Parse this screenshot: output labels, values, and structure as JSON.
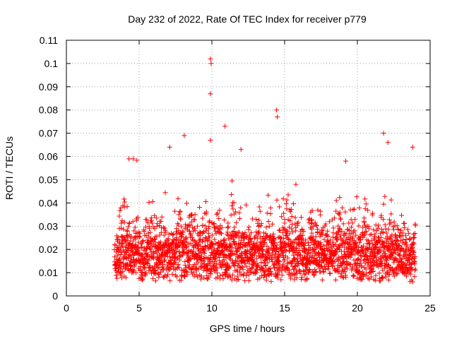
{
  "chart_data": {
    "type": "scatter",
    "title": "Day 232 of 2022, Rate Of TEC Index for receiver p779",
    "xlabel": "GPS time / hours",
    "ylabel": "ROTI / TECUs",
    "xlim": [
      0,
      25
    ],
    "ylim": [
      0,
      0.11
    ],
    "x_ticks": [
      0,
      5,
      10,
      15,
      20,
      25
    ],
    "y_ticks": [
      0,
      0.01,
      0.02,
      0.03,
      0.04,
      0.05,
      0.06,
      0.07,
      0.08,
      0.09,
      0.1,
      0.11
    ],
    "grid": true,
    "marker": "+",
    "series_color": "#ff0000",
    "data_coverage_hours": [
      3.3,
      24.0
    ],
    "notable_points": [
      {
        "x": 9.9,
        "y": 0.102
      },
      {
        "x": 9.95,
        "y": 0.1
      },
      {
        "x": 9.9,
        "y": 0.087
      },
      {
        "x": 14.45,
        "y": 0.08
      },
      {
        "x": 14.5,
        "y": 0.077
      },
      {
        "x": 10.9,
        "y": 0.073
      },
      {
        "x": 21.8,
        "y": 0.07
      },
      {
        "x": 8.1,
        "y": 0.069
      },
      {
        "x": 9.9,
        "y": 0.067
      },
      {
        "x": 22.1,
        "y": 0.066
      },
      {
        "x": 7.1,
        "y": 0.064
      },
      {
        "x": 23.8,
        "y": 0.064
      },
      {
        "x": 12.0,
        "y": 0.063
      },
      {
        "x": 4.3,
        "y": 0.059
      },
      {
        "x": 4.6,
        "y": 0.059
      },
      {
        "x": 19.2,
        "y": 0.058
      }
    ]
  }
}
